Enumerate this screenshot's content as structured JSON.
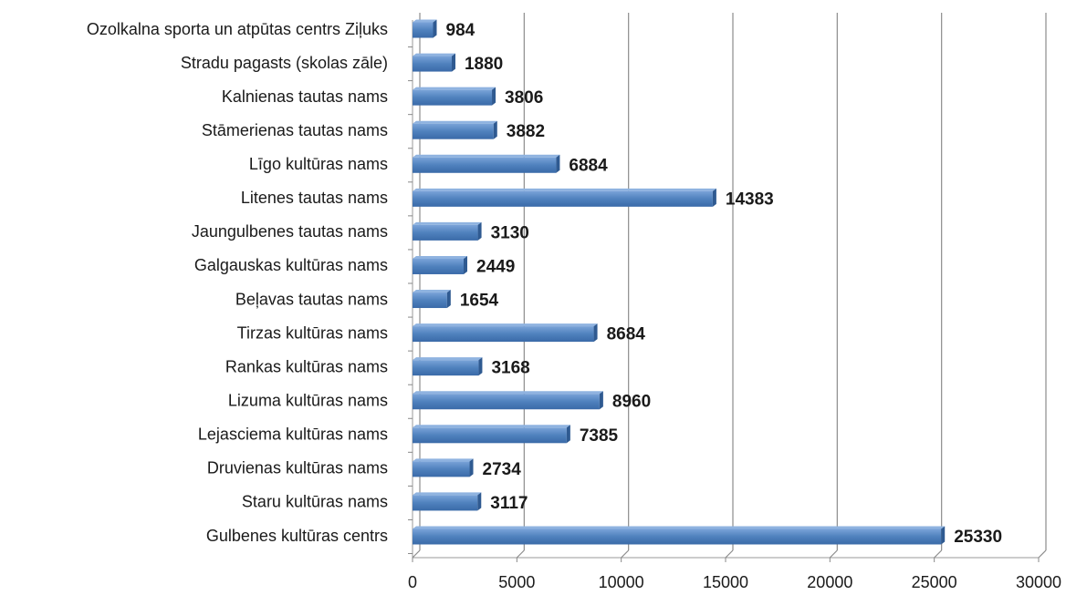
{
  "chart_data": {
    "type": "bar",
    "orientation": "horizontal",
    "categories": [
      "Ozolkalna sporta un atpūtas centrs Ziļuks",
      "Stradu pagasts (skolas zāle)",
      "Kalnienas tautas nams",
      "Stāmerienas tautas nams",
      "Līgo kultūras nams",
      "Litenes tautas nams",
      "Jaungulbenes tautas nams",
      "Galgauskas kultūras nams",
      "Beļavas tautas nams",
      "Tirzas kultūras nams",
      "Rankas kultūras nams",
      "Lizuma kultūras nams",
      "Lejasciema kultūras nams",
      "Druvienas kultūras nams",
      "Staru kultūras nams",
      "Gulbenes kultūras centrs"
    ],
    "values": [
      984,
      1880,
      3806,
      3882,
      6884,
      14383,
      3130,
      2449,
      1654,
      8684,
      3168,
      8960,
      7385,
      2734,
      3117,
      25330
    ],
    "color": "#4f81bd",
    "xlim": [
      0,
      30000
    ],
    "xticks": [
      0,
      5000,
      10000,
      15000,
      20000,
      25000,
      30000
    ],
    "grid": true
  }
}
